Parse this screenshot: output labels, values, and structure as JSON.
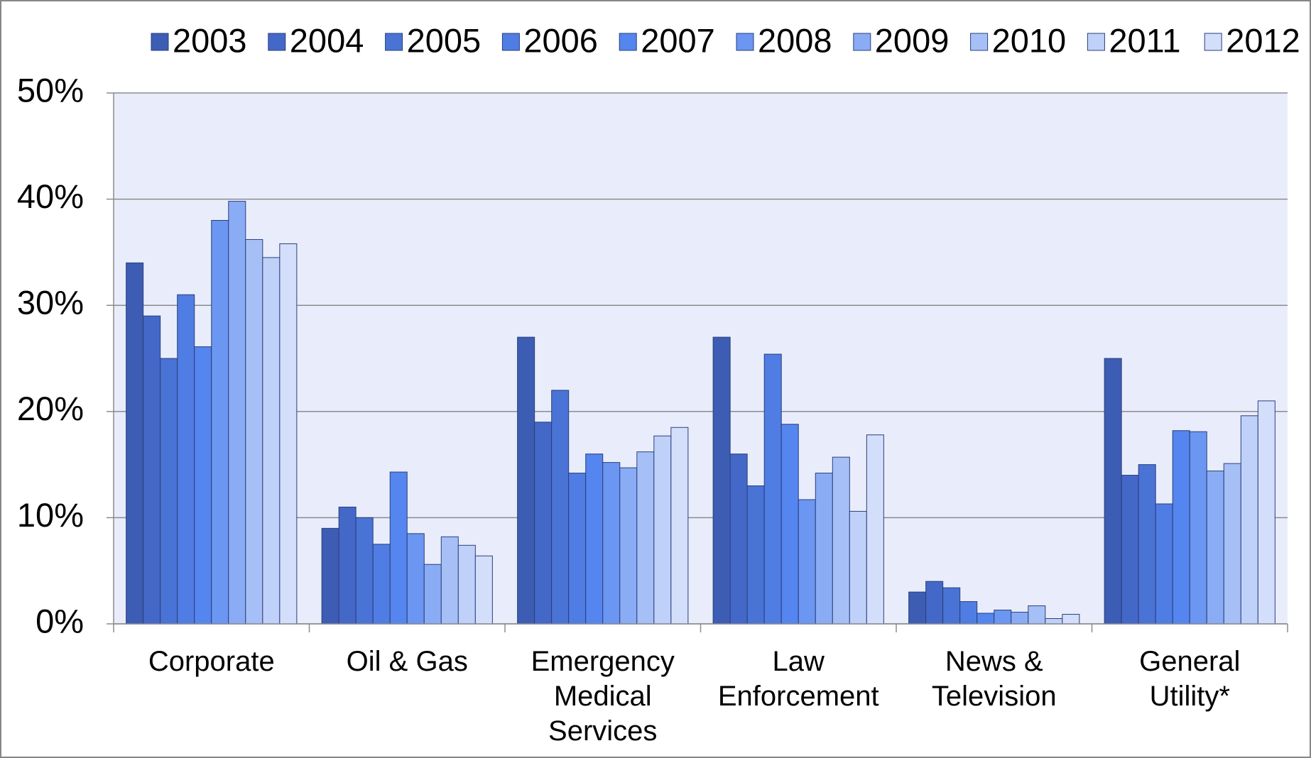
{
  "chart_data": {
    "type": "bar",
    "categories": [
      "Corporate",
      "Oil & Gas",
      "Emergency Medical Services",
      "Law Enforcement",
      "News & Television",
      "General Utility*"
    ],
    "series": [
      {
        "name": "2003",
        "color": "#3d5db4",
        "values": [
          34.0,
          9.0,
          27.0,
          27.0,
          3.0,
          25.0
        ]
      },
      {
        "name": "2004",
        "color": "#4468c8",
        "values": [
          29.0,
          11.0,
          19.0,
          16.0,
          4.0,
          14.0
        ]
      },
      {
        "name": "2005",
        "color": "#4a73d6",
        "values": [
          25.0,
          10.0,
          22.0,
          13.0,
          3.4,
          15.0
        ]
      },
      {
        "name": "2006",
        "color": "#4f7de3",
        "values": [
          31.0,
          7.5,
          14.2,
          25.4,
          2.1,
          11.3
        ]
      },
      {
        "name": "2007",
        "color": "#5585ee",
        "values": [
          26.1,
          14.3,
          16.0,
          18.8,
          1.0,
          18.2
        ]
      },
      {
        "name": "2008",
        "color": "#6b96f2",
        "values": [
          38.0,
          8.5,
          15.2,
          11.7,
          1.3,
          18.1
        ]
      },
      {
        "name": "2009",
        "color": "#8aacf5",
        "values": [
          39.8,
          5.6,
          14.7,
          14.2,
          1.1,
          14.4
        ]
      },
      {
        "name": "2010",
        "color": "#a6c0f7",
        "values": [
          36.2,
          8.2,
          16.2,
          15.7,
          1.7,
          15.1
        ]
      },
      {
        "name": "2011",
        "color": "#bfd1f9",
        "values": [
          34.5,
          7.4,
          17.7,
          10.6,
          0.5,
          19.6
        ]
      },
      {
        "name": "2012",
        "color": "#d3defb",
        "values": [
          35.8,
          6.4,
          18.5,
          17.8,
          0.9,
          21.0
        ]
      }
    ],
    "ylim": [
      0,
      50
    ],
    "yticks": [
      {
        "value": 0,
        "label": "0%"
      },
      {
        "value": 10,
        "label": "10%"
      },
      {
        "value": 20,
        "label": "20%"
      },
      {
        "value": 30,
        "label": "30%"
      },
      {
        "value": 40,
        "label": "40%"
      },
      {
        "value": 50,
        "label": "50%"
      }
    ],
    "grid": true,
    "legend": "top"
  }
}
